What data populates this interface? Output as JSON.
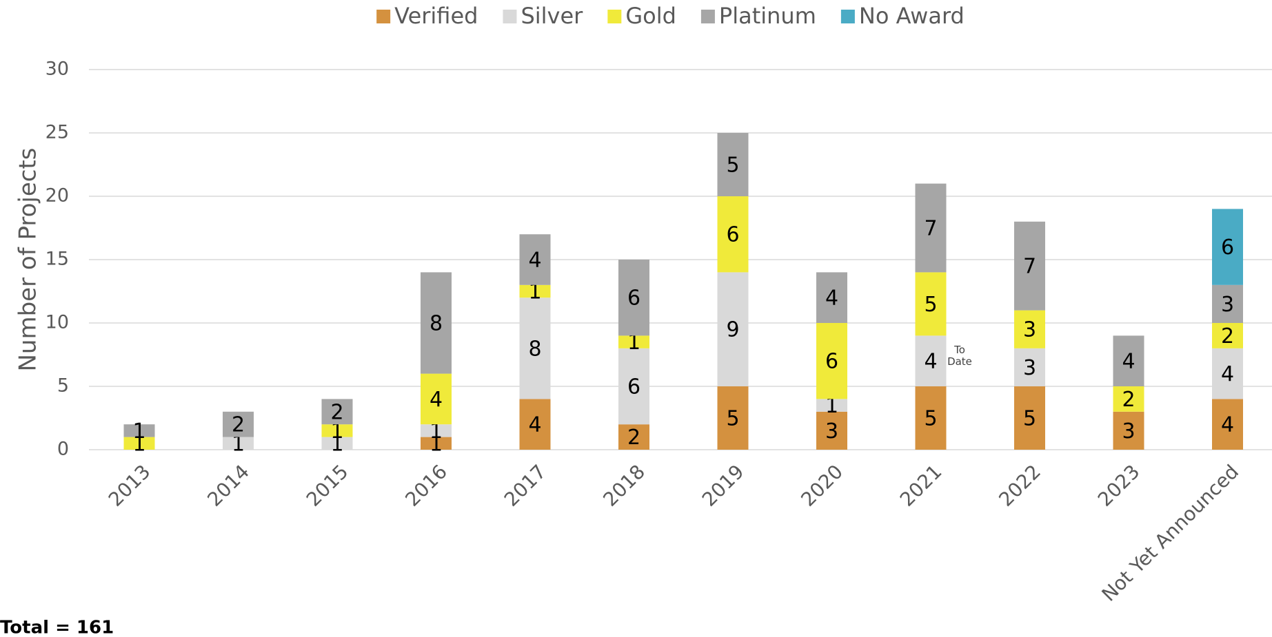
{
  "chart_data": {
    "type": "stacked_bar",
    "y_label": "Number of Projects",
    "categories": [
      "2013",
      "2014",
      "2015",
      "2016",
      "2017",
      "2018",
      "2019",
      "2020",
      "2021",
      "2022",
      "2023",
      "Not Yet Announced"
    ],
    "series": [
      {
        "name": "Verified",
        "color": "#d4913f",
        "values": [
          null,
          null,
          null,
          1,
          4,
          2,
          5,
          3,
          5,
          5,
          3,
          4
        ]
      },
      {
        "name": "Silver",
        "color": "#d9d9d9",
        "values": [
          null,
          1,
          1,
          1,
          8,
          6,
          9,
          1,
          4,
          3,
          null,
          4
        ]
      },
      {
        "name": "Gold",
        "color": "#f0ea3a",
        "values": [
          1,
          null,
          1,
          4,
          1,
          1,
          6,
          6,
          5,
          3,
          2,
          2
        ]
      },
      {
        "name": "Platinum",
        "color": "#a6a6a6",
        "values": [
          1,
          2,
          2,
          8,
          4,
          6,
          5,
          4,
          7,
          7,
          4,
          3
        ]
      },
      {
        "name": "No Award",
        "color": "#4aabc5",
        "values": [
          null,
          null,
          null,
          null,
          null,
          null,
          null,
          null,
          null,
          null,
          null,
          6
        ]
      }
    ],
    "ylim": [
      0,
      30
    ],
    "yticks": [
      0,
      5,
      10,
      15,
      20,
      25,
      30
    ],
    "grid": true,
    "annotation": "To Date",
    "total_note": "Total = 161"
  }
}
